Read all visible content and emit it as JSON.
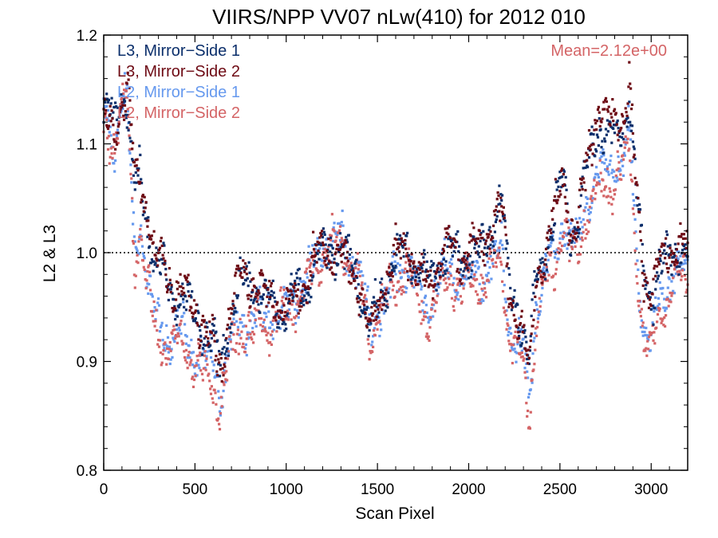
{
  "chart_data": {
    "type": "scatter",
    "title": "VIIRS/NPP VV07 nLw(410) for 2012 010",
    "xlabel": "Scan Pixel",
    "ylabel": "L2 & L3",
    "xlim": [
      0,
      3200
    ],
    "ylim": [
      0.8,
      1.2
    ],
    "xticks": [
      0,
      500,
      1000,
      1500,
      2000,
      2500,
      3000
    ],
    "yticks": [
      0.8,
      0.9,
      1.0,
      1.1,
      1.2
    ],
    "xtick_labels": [
      "0",
      "500",
      "1000",
      "1500",
      "2000",
      "2500",
      "3000"
    ],
    "ytick_labels": [
      "0.8",
      "0.9",
      "1.0",
      "1.1",
      "1.2"
    ],
    "reference_line": 1.0,
    "annotation": "Mean=2.12e+00",
    "legend_position": "top-left",
    "series": [
      {
        "name": "L3, Mirror−Side 1",
        "color": "#0b2f6b",
        "anchors": [
          [
            0,
            1.13
          ],
          [
            60,
            1.12
          ],
          [
            100,
            1.15
          ],
          [
            130,
            1.14
          ],
          [
            170,
            1.06
          ],
          [
            200,
            1.07
          ],
          [
            240,
            1.03
          ],
          [
            280,
            0.99
          ],
          [
            330,
            0.98
          ],
          [
            380,
            0.965
          ],
          [
            430,
            0.96
          ],
          [
            480,
            0.95
          ],
          [
            540,
            0.93
          ],
          [
            600,
            0.92
          ],
          [
            640,
            0.895
          ],
          [
            680,
            0.93
          ],
          [
            730,
            0.965
          ],
          [
            780,
            0.975
          ],
          [
            820,
            0.975
          ],
          [
            850,
            0.96
          ],
          [
            900,
            0.955
          ],
          [
            950,
            0.95
          ],
          [
            1000,
            0.945
          ],
          [
            1050,
            0.96
          ],
          [
            1100,
            0.965
          ],
          [
            1150,
            0.985
          ],
          [
            1200,
            1.0
          ],
          [
            1260,
            1.005
          ],
          [
            1320,
            0.995
          ],
          [
            1380,
            0.985
          ],
          [
            1420,
            0.96
          ],
          [
            1460,
            0.93
          ],
          [
            1500,
            0.95
          ],
          [
            1540,
            0.97
          ],
          [
            1600,
            0.99
          ],
          [
            1660,
            1.005
          ],
          [
            1720,
            0.985
          ],
          [
            1780,
            0.975
          ],
          [
            1840,
            0.99
          ],
          [
            1900,
            1.005
          ],
          [
            1960,
            0.995
          ],
          [
            2000,
            1.0
          ],
          [
            2060,
            1.0
          ],
          [
            2120,
            1.02
          ],
          [
            2180,
            1.05
          ],
          [
            2220,
            0.97
          ],
          [
            2270,
            0.95
          ],
          [
            2300,
            0.93
          ],
          [
            2330,
            0.895
          ],
          [
            2370,
            0.98
          ],
          [
            2420,
            1.0
          ],
          [
            2470,
            1.03
          ],
          [
            2520,
            1.07
          ],
          [
            2560,
            1.02
          ],
          [
            2600,
            1.025
          ],
          [
            2650,
            1.08
          ],
          [
            2700,
            1.12
          ],
          [
            2750,
            1.105
          ],
          [
            2800,
            1.11
          ],
          [
            2850,
            1.115
          ],
          [
            2880,
            1.14
          ],
          [
            2920,
            1.05
          ],
          [
            2960,
            0.985
          ],
          [
            3000,
            0.96
          ],
          [
            3050,
            0.985
          ],
          [
            3100,
            0.995
          ],
          [
            3150,
            1.005
          ],
          [
            3200,
            1.0
          ]
        ],
        "spread": 0.012
      },
      {
        "name": "L3, Mirror−Side 2",
        "color": "#6e0a14",
        "anchors": [
          [
            0,
            1.12
          ],
          [
            60,
            1.11
          ],
          [
            100,
            1.14
          ],
          [
            130,
            1.15
          ],
          [
            170,
            1.07
          ],
          [
            200,
            1.065
          ],
          [
            240,
            1.04
          ],
          [
            280,
            0.995
          ],
          [
            330,
            0.99
          ],
          [
            380,
            0.97
          ],
          [
            430,
            0.965
          ],
          [
            480,
            0.955
          ],
          [
            540,
            0.935
          ],
          [
            600,
            0.915
          ],
          [
            640,
            0.89
          ],
          [
            680,
            0.935
          ],
          [
            730,
            0.97
          ],
          [
            780,
            0.98
          ],
          [
            820,
            0.975
          ],
          [
            850,
            0.965
          ],
          [
            900,
            0.955
          ],
          [
            950,
            0.955
          ],
          [
            1000,
            0.95
          ],
          [
            1050,
            0.96
          ],
          [
            1100,
            0.97
          ],
          [
            1150,
            0.99
          ],
          [
            1200,
            1.005
          ],
          [
            1260,
            1.0
          ],
          [
            1320,
            0.99
          ],
          [
            1380,
            0.98
          ],
          [
            1420,
            0.955
          ],
          [
            1460,
            0.92
          ],
          [
            1500,
            0.955
          ],
          [
            1540,
            0.975
          ],
          [
            1600,
            0.995
          ],
          [
            1660,
            1.01
          ],
          [
            1720,
            0.98
          ],
          [
            1780,
            0.97
          ],
          [
            1840,
            0.995
          ],
          [
            1900,
            1.01
          ],
          [
            1960,
            0.99
          ],
          [
            2000,
            1.005
          ],
          [
            2060,
            1.005
          ],
          [
            2120,
            1.025
          ],
          [
            2180,
            1.04
          ],
          [
            2220,
            0.965
          ],
          [
            2270,
            0.945
          ],
          [
            2300,
            0.925
          ],
          [
            2330,
            0.885
          ],
          [
            2370,
            0.975
          ],
          [
            2420,
            1.0
          ],
          [
            2470,
            1.035
          ],
          [
            2520,
            1.075
          ],
          [
            2560,
            1.02
          ],
          [
            2600,
            1.02
          ],
          [
            2650,
            1.09
          ],
          [
            2700,
            1.13
          ],
          [
            2750,
            1.12
          ],
          [
            2800,
            1.125
          ],
          [
            2850,
            1.13
          ],
          [
            2880,
            1.15
          ],
          [
            2920,
            1.05
          ],
          [
            2960,
            0.98
          ],
          [
            3000,
            0.965
          ],
          [
            3050,
            0.99
          ],
          [
            3100,
            1.0
          ],
          [
            3150,
            1.01
          ],
          [
            3200,
            1.0
          ]
        ],
        "spread": 0.012
      },
      {
        "name": "L2, Mirror−Side 1",
        "color": "#6699ee",
        "anchors": [
          [
            0,
            1.13
          ],
          [
            60,
            1.1
          ],
          [
            100,
            1.14
          ],
          [
            130,
            1.13
          ],
          [
            170,
            1.0
          ],
          [
            200,
            1.03
          ],
          [
            240,
            0.97
          ],
          [
            280,
            0.94
          ],
          [
            330,
            0.925
          ],
          [
            380,
            0.925
          ],
          [
            430,
            0.925
          ],
          [
            480,
            0.915
          ],
          [
            540,
            0.9
          ],
          [
            600,
            0.895
          ],
          [
            640,
            0.87
          ],
          [
            680,
            0.905
          ],
          [
            730,
            0.935
          ],
          [
            780,
            0.94
          ],
          [
            820,
            0.94
          ],
          [
            850,
            0.945
          ],
          [
            900,
            0.94
          ],
          [
            950,
            0.945
          ],
          [
            1000,
            0.945
          ],
          [
            1050,
            0.96
          ],
          [
            1100,
            0.975
          ],
          [
            1150,
            0.99
          ],
          [
            1200,
            1.005
          ],
          [
            1260,
            1.015
          ],
          [
            1320,
            1.005
          ],
          [
            1380,
            0.99
          ],
          [
            1420,
            0.965
          ],
          [
            1460,
            0.925
          ],
          [
            1500,
            0.95
          ],
          [
            1540,
            0.96
          ],
          [
            1600,
            0.975
          ],
          [
            1660,
            0.995
          ],
          [
            1720,
            0.965
          ],
          [
            1780,
            0.95
          ],
          [
            1840,
            0.975
          ],
          [
            1900,
            0.985
          ],
          [
            1960,
            0.975
          ],
          [
            2000,
            0.98
          ],
          [
            2060,
            0.975
          ],
          [
            2120,
            0.99
          ],
          [
            2180,
            1.0
          ],
          [
            2220,
            0.935
          ],
          [
            2270,
            0.915
          ],
          [
            2300,
            0.905
          ],
          [
            2330,
            0.86
          ],
          [
            2370,
            0.95
          ],
          [
            2420,
            0.98
          ],
          [
            2470,
            0.995
          ],
          [
            2520,
            1.03
          ],
          [
            2560,
            1.01
          ],
          [
            2600,
            1.005
          ],
          [
            2650,
            1.05
          ],
          [
            2700,
            1.07
          ],
          [
            2750,
            1.07
          ],
          [
            2800,
            1.08
          ],
          [
            2850,
            1.09
          ],
          [
            2880,
            1.11
          ],
          [
            2920,
            1.0
          ],
          [
            2960,
            0.93
          ],
          [
            3000,
            0.92
          ],
          [
            3050,
            0.96
          ],
          [
            3100,
            0.975
          ],
          [
            3150,
            0.985
          ],
          [
            3200,
            0.985
          ]
        ],
        "spread": 0.013
      },
      {
        "name": "L2, Mirror−Side 2",
        "color": "#d46466",
        "anchors": [
          [
            0,
            1.12
          ],
          [
            60,
            1.1
          ],
          [
            100,
            1.13
          ],
          [
            130,
            1.14
          ],
          [
            170,
            0.99
          ],
          [
            200,
            1.02
          ],
          [
            240,
            0.965
          ],
          [
            280,
            0.93
          ],
          [
            330,
            0.915
          ],
          [
            380,
            0.915
          ],
          [
            430,
            0.915
          ],
          [
            480,
            0.905
          ],
          [
            540,
            0.89
          ],
          [
            600,
            0.88
          ],
          [
            640,
            0.86
          ],
          [
            680,
            0.9
          ],
          [
            730,
            0.925
          ],
          [
            780,
            0.93
          ],
          [
            820,
            0.925
          ],
          [
            850,
            0.935
          ],
          [
            900,
            0.935
          ],
          [
            950,
            0.94
          ],
          [
            1000,
            0.94
          ],
          [
            1050,
            0.955
          ],
          [
            1100,
            0.97
          ],
          [
            1150,
            0.985
          ],
          [
            1200,
            1.0
          ],
          [
            1260,
            1.01
          ],
          [
            1320,
            1.0
          ],
          [
            1380,
            0.985
          ],
          [
            1420,
            0.955
          ],
          [
            1460,
            0.915
          ],
          [
            1500,
            0.945
          ],
          [
            1540,
            0.955
          ],
          [
            1600,
            0.97
          ],
          [
            1660,
            0.99
          ],
          [
            1720,
            0.955
          ],
          [
            1780,
            0.94
          ],
          [
            1840,
            0.965
          ],
          [
            1900,
            0.98
          ],
          [
            1960,
            0.965
          ],
          [
            2000,
            0.975
          ],
          [
            2060,
            0.97
          ],
          [
            2120,
            0.985
          ],
          [
            2180,
            0.99
          ],
          [
            2220,
            0.925
          ],
          [
            2270,
            0.91
          ],
          [
            2300,
            0.895
          ],
          [
            2330,
            0.85
          ],
          [
            2370,
            0.94
          ],
          [
            2420,
            0.97
          ],
          [
            2470,
            0.99
          ],
          [
            2520,
            1.025
          ],
          [
            2560,
            1.0
          ],
          [
            2600,
            0.995
          ],
          [
            2650,
            1.04
          ],
          [
            2700,
            1.055
          ],
          [
            2750,
            1.06
          ],
          [
            2800,
            1.07
          ],
          [
            2850,
            1.08
          ],
          [
            2880,
            1.1
          ],
          [
            2920,
            0.99
          ],
          [
            2960,
            0.915
          ],
          [
            3000,
            0.905
          ],
          [
            3050,
            0.95
          ],
          [
            3100,
            0.965
          ],
          [
            3150,
            0.975
          ],
          [
            3200,
            0.975
          ]
        ],
        "spread": 0.013
      }
    ]
  }
}
